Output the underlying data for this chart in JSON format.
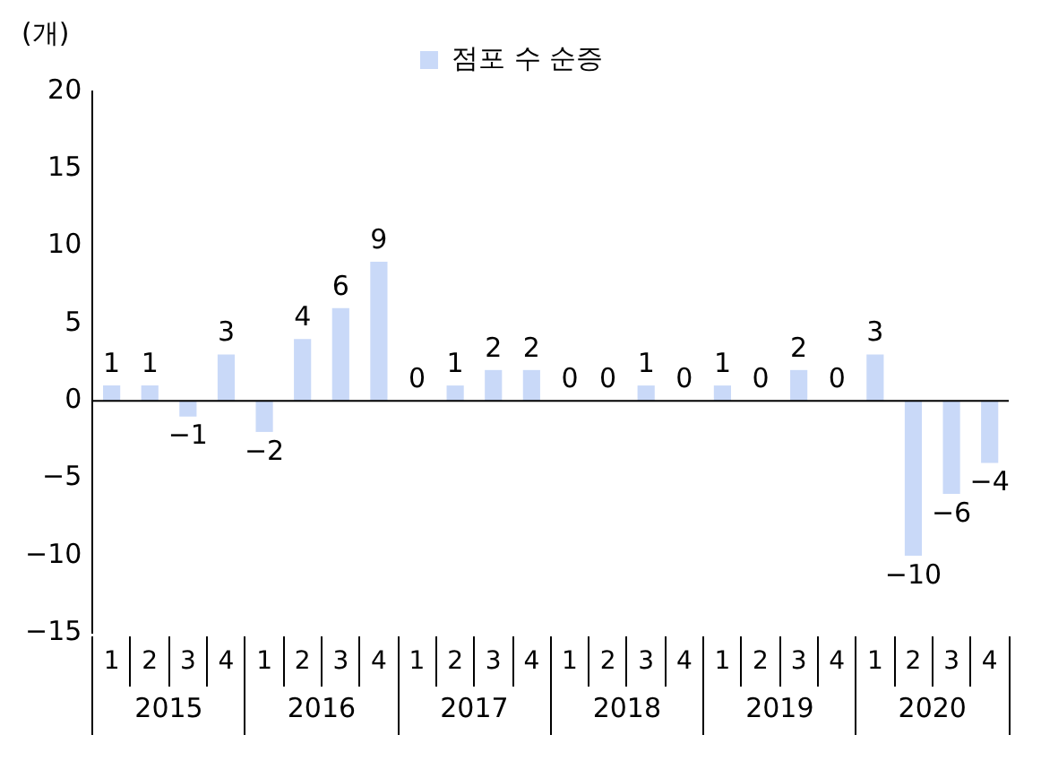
{
  "chart_data": {
    "type": "bar",
    "ylabel": "(개)",
    "categories": [
      "1",
      "2",
      "3",
      "4",
      "1",
      "2",
      "3",
      "4",
      "1",
      "2",
      "3",
      "4",
      "1",
      "2",
      "3",
      "4",
      "1",
      "2",
      "3",
      "4",
      "1",
      "2",
      "3",
      "4"
    ],
    "series": [
      {
        "name": "점포 수 순증",
        "color": "#c9d9f8",
        "values": [
          1,
          1,
          -1,
          3,
          -2,
          4,
          6,
          9,
          0,
          1,
          2,
          2,
          0,
          0,
          1,
          0,
          1,
          0,
          2,
          0,
          3,
          -10,
          -6,
          -4
        ]
      }
    ],
    "annotations": [
      "2015",
      "2016",
      "2017",
      "2018",
      "2019",
      "2020"
    ],
    "ylim": [
      -15,
      20
    ],
    "yticks": [
      -15,
      -10,
      -5,
      0,
      5,
      10,
      15,
      20
    ],
    "ref_lines": [
      {
        "axis": "y",
        "value": 0,
        "color": "#000000"
      }
    ],
    "grid": false,
    "legend": "top",
    "data_labels": true
  }
}
